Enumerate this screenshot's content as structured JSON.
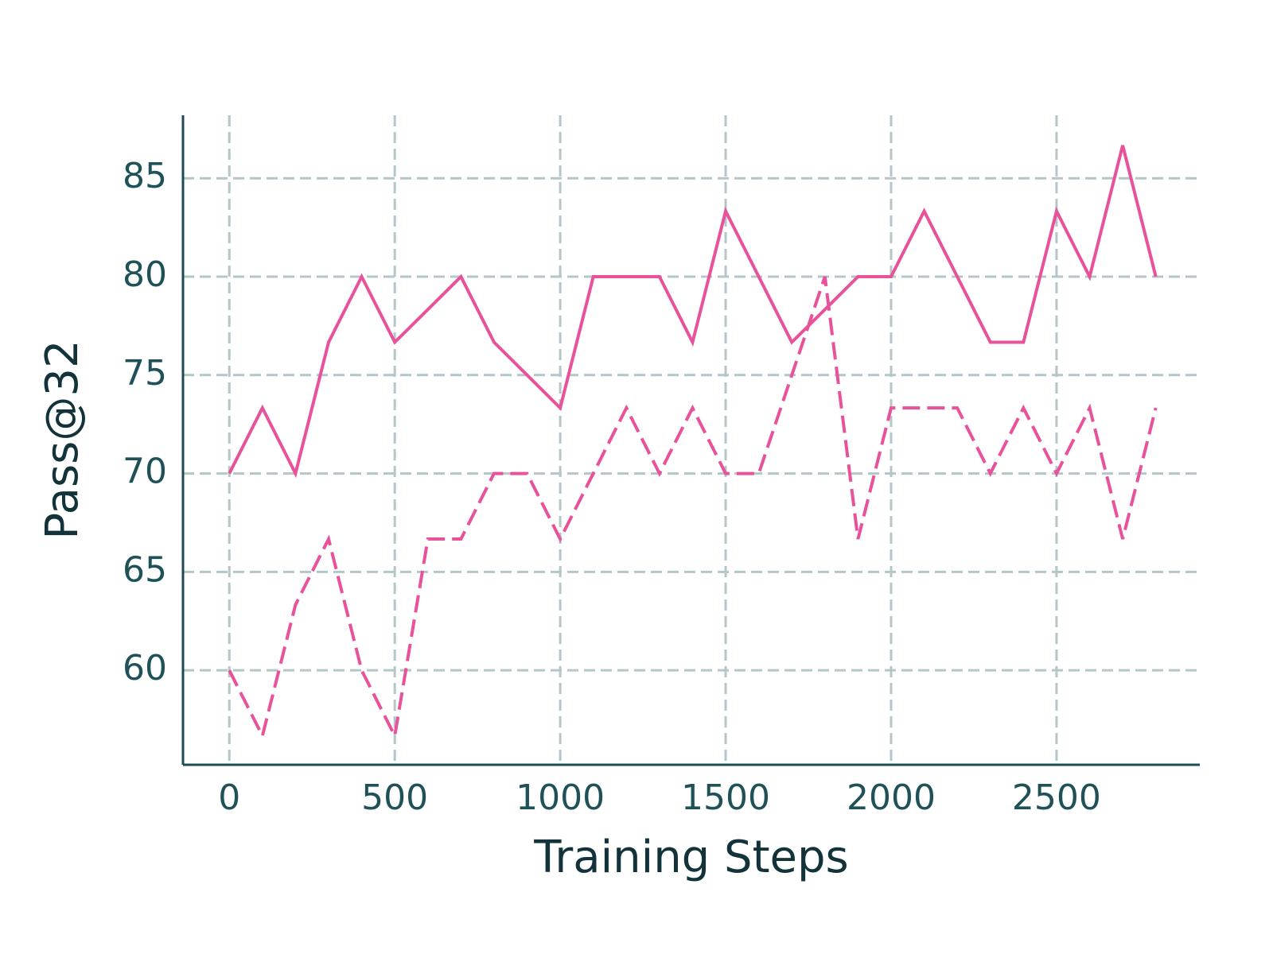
{
  "chart_data": {
    "type": "line",
    "x_label": "Training Steps",
    "y_label": "Pass@32",
    "x": [
      0,
      100,
      200,
      300,
      400,
      500,
      600,
      700,
      800,
      900,
      1000,
      1100,
      1200,
      1300,
      1400,
      1500,
      1600,
      1700,
      1800,
      1900,
      2000,
      2100,
      2200,
      2300,
      2400,
      2500,
      2600,
      2700,
      2800
    ],
    "series": [
      {
        "color": "#e8529b",
        "style": "solid",
        "values": [
          70,
          73.33,
          70,
          76.67,
          80,
          76.67,
          78.33,
          80,
          76.67,
          75,
          73.33,
          80,
          80,
          80,
          76.67,
          83.33,
          80,
          76.67,
          78.33,
          80,
          80,
          83.33,
          80,
          76.67,
          76.67,
          83.33,
          80,
          86.67,
          80
        ]
      },
      {
        "color": "#e8529b",
        "style": "dashed",
        "values": [
          60,
          56.67,
          63.33,
          66.67,
          60,
          56.67,
          66.67,
          66.67,
          70,
          70,
          66.67,
          70,
          73.33,
          70,
          73.33,
          70,
          70,
          75,
          80,
          66.67,
          73.33,
          73.33,
          73.33,
          70,
          73.33,
          70,
          73.33,
          66.67,
          73.33
        ]
      }
    ],
    "xlim": [
      -140,
      2933
    ],
    "ylim": [
      55.2,
      88.2
    ],
    "xticks": [
      0,
      500,
      1000,
      1500,
      2000,
      2500
    ],
    "yticks": [
      60,
      65,
      70,
      75,
      80,
      85
    ],
    "grid": true,
    "grid_color": "#b3c6ca",
    "axis_color": "#1f4a50"
  }
}
